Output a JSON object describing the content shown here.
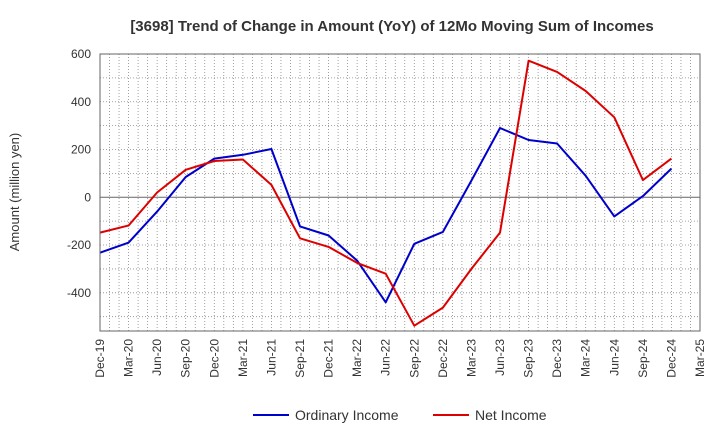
{
  "chart_data": {
    "type": "line",
    "title": "[3698]  Trend of Change in Amount (YoY) of 12Mo Moving Sum of Incomes",
    "xlabel": "",
    "ylabel": "Amount (million yen)",
    "categories": [
      "Dec-19",
      "Mar-20",
      "Jun-20",
      "Sep-20",
      "Dec-20",
      "Mar-21",
      "Jun-21",
      "Sep-21",
      "Dec-21",
      "Mar-22",
      "Jun-22",
      "Sep-22",
      "Dec-22",
      "Mar-23",
      "Jun-23",
      "Sep-23",
      "Dec-23",
      "Mar-24",
      "Jun-24",
      "Sep-24",
      "Dec-24",
      "Mar-25"
    ],
    "ylim": [
      -560,
      600
    ],
    "yticks": [
      600,
      400,
      200,
      0,
      -200,
      -400
    ],
    "grid": true,
    "legend_position": "bottom",
    "series": [
      {
        "name": "Ordinary Income",
        "color": "#0000cc",
        "values": [
          -232,
          -190,
          -60,
          85,
          162,
          178,
          202,
          -122,
          -160,
          -265,
          -440,
          -195,
          -145,
          70,
          290,
          240,
          225,
          90,
          -80,
          5,
          120,
          null
        ]
      },
      {
        "name": "Net Income",
        "color": "#dd0000",
        "values": [
          -148,
          -118,
          20,
          115,
          152,
          158,
          52,
          -172,
          -208,
          -275,
          -320,
          -538,
          -462,
          -300,
          -148,
          572,
          525,
          445,
          335,
          72,
          162,
          null
        ]
      }
    ]
  }
}
